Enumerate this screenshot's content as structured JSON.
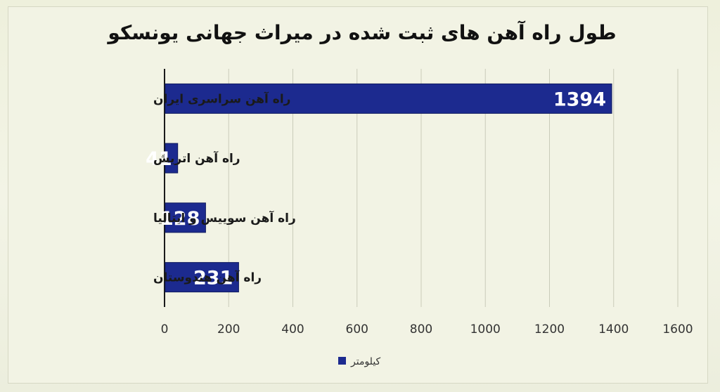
{
  "chart_data": {
    "type": "bar",
    "orientation": "horizontal",
    "title": "طول راه آهن های ثبت شده در میراث جهانی یونسکو",
    "categories": [
      "راه آهن سراسری ایران",
      "راه آهن اتریش",
      "راه آهن سوییس و ایتالیا",
      "راه آهن هندوستان"
    ],
    "series": [
      {
        "name": "کیلومتر",
        "values": [
          1394,
          41,
          128,
          231
        ],
        "color": "#1c2a8f"
      }
    ],
    "xlim": [
      0,
      1600
    ],
    "x_ticks": [
      "0",
      "200",
      "400",
      "600",
      "800",
      "1000",
      "1200",
      "1400",
      "1600"
    ],
    "grid": "vertical",
    "legend": "bottom",
    "data_labels": [
      "1394",
      "41",
      "128",
      "231"
    ]
  }
}
